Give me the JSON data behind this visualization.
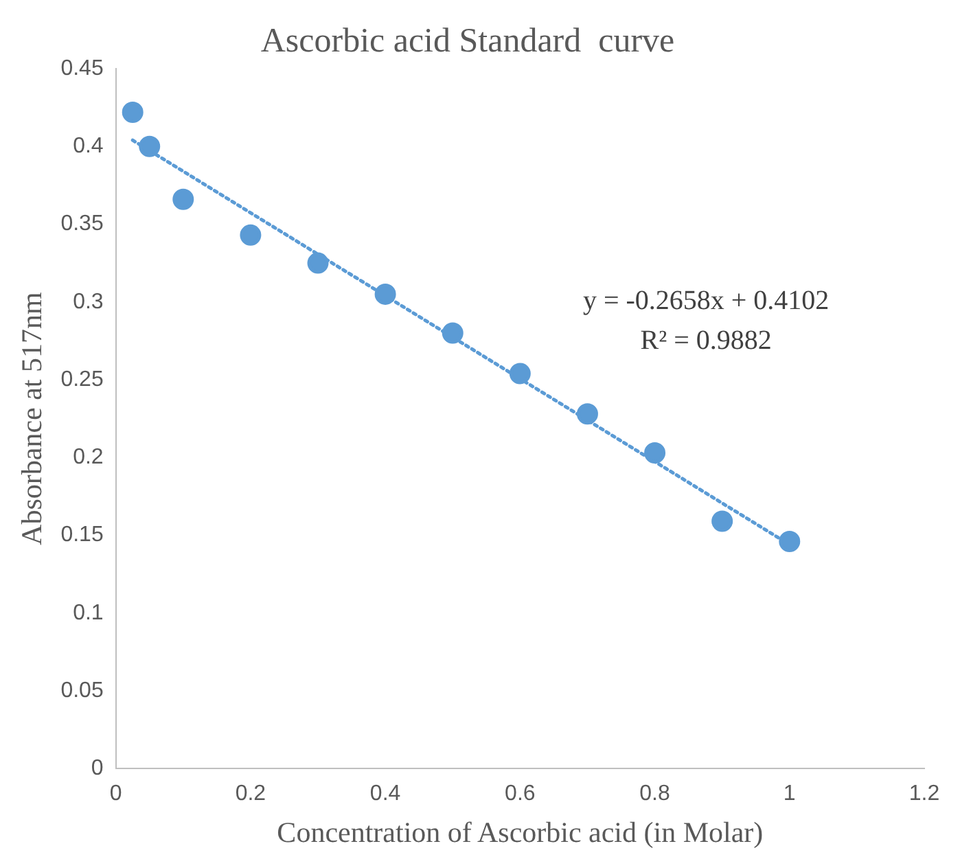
{
  "chart_data": {
    "type": "scatter",
    "title": "Ascorbic acid Standard  curve",
    "xlabel": "Concentration of Ascorbic acid (in Molar)",
    "ylabel": "Absorbance at 517nm",
    "series": [
      {
        "color": "#5b9bd5",
        "marker": "circle",
        "x": [
          0.025,
          0.05,
          0.1,
          0.2,
          0.3,
          0.4,
          0.5,
          0.6,
          0.7,
          0.8,
          0.9,
          1.0
        ],
        "values": [
          0.422,
          0.4,
          0.366,
          0.343,
          0.325,
          0.305,
          0.28,
          0.254,
          0.228,
          0.203,
          0.159,
          0.146
        ]
      },
      {
        "type": "line",
        "color": "#5b9bd5",
        "marker": "none",
        "line_style": "dotted",
        "x": [
          0.025,
          1.0
        ],
        "values": [
          0.404,
          0.144
        ]
      }
    ],
    "xlim": [
      0,
      1.2
    ],
    "xticks": [
      0,
      0.2,
      0.4,
      0.6,
      0.8,
      1,
      1.2
    ],
    "ylim": [
      0,
      0.45
    ],
    "yticks": [
      0,
      0.05,
      0.1,
      0.15,
      0.2,
      0.25,
      0.3,
      0.35,
      0.4,
      0.45
    ],
    "grid": false,
    "legend": false,
    "annotations": [
      "y = -0.2658x + 0.4102",
      "R² = 0.9882"
    ]
  }
}
